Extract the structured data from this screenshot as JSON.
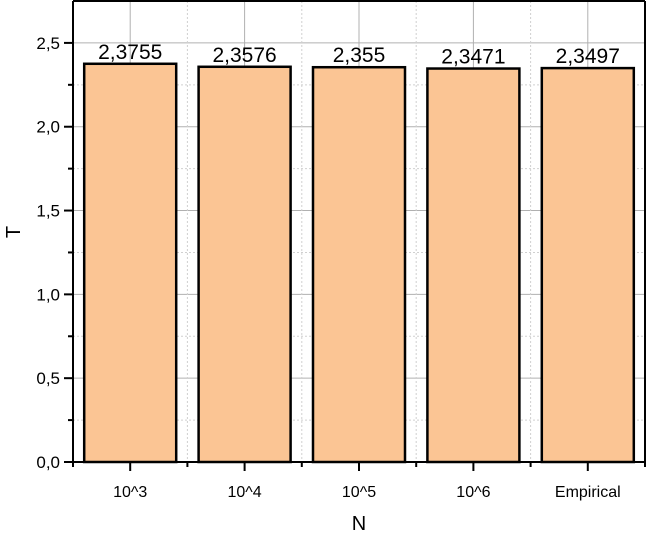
{
  "chart_data": {
    "type": "bar",
    "title": "",
    "xlabel": "N",
    "ylabel": "T",
    "categories": [
      "10^3",
      "10^4",
      "10^5",
      "10^6",
      "Empirical"
    ],
    "values": [
      2.3755,
      2.3576,
      2.355,
      2.3471,
      2.3497
    ],
    "data_labels": [
      "2,3755",
      "2,3576",
      "2,355",
      "2,3471",
      "2,3497"
    ],
    "ylim": [
      0,
      2.75
    ],
    "yticks": [
      0.0,
      0.5,
      1.0,
      1.5,
      2.0,
      2.5
    ],
    "ytick_labels": [
      "0,0",
      "0,5",
      "1,0",
      "1,5",
      "2,0",
      "2,5"
    ],
    "grid": true,
    "legend": null,
    "colors": {
      "bar_fill": "#fbc594",
      "bar_edge": "#000000",
      "grid_major": "#b0b0b0",
      "grid_minor": "#d0d0d0"
    }
  }
}
